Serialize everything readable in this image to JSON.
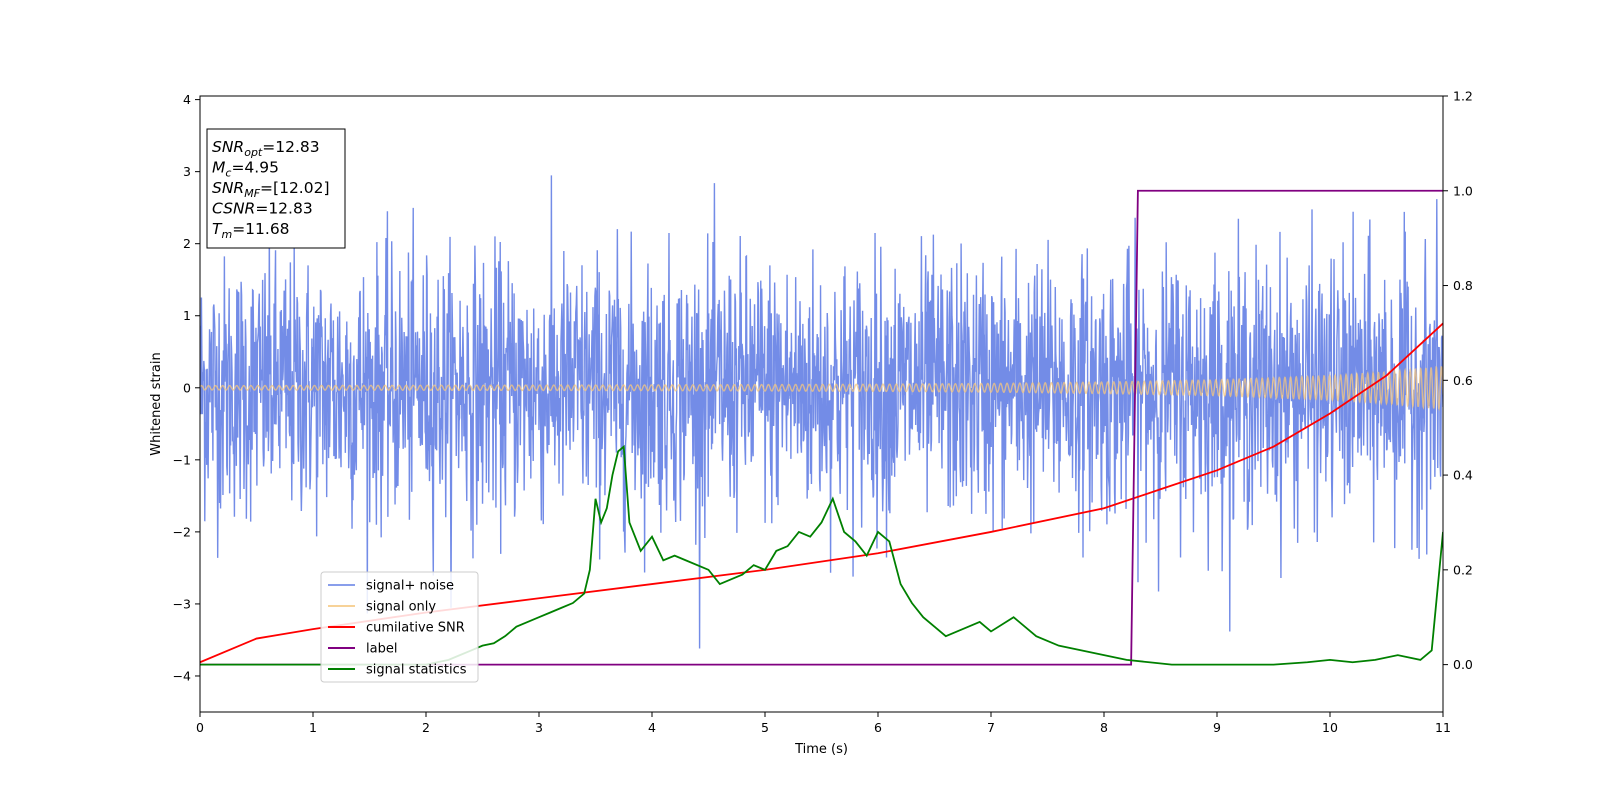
{
  "chart_data": {
    "type": "line",
    "title": "",
    "xlabel": "Time (s)",
    "ylabel": "Whitened strain",
    "xlim": [
      0,
      11
    ],
    "ylim": [
      -4.5,
      4.05
    ],
    "y2lim": [
      -0.1,
      1.2
    ],
    "x_ticks": [
      "0",
      "1",
      "2",
      "3",
      "4",
      "5",
      "6",
      "7",
      "8",
      "9",
      "10",
      "11"
    ],
    "y_ticks": [
      "4",
      "3",
      "2",
      "1",
      "0",
      "−1",
      "−2",
      "−3",
      "−4"
    ],
    "y2_ticks": [
      "1.2",
      "1.0",
      "0.8",
      "0.6",
      "0.4",
      "0.2",
      "0.0"
    ],
    "grid": false,
    "legend_position": "lower-left",
    "annotation": {
      "lines": [
        {
          "main": "SNR",
          "sub": "opt",
          "rest": "=12.83"
        },
        {
          "main": "M",
          "sub": "c",
          "rest": "=4.95"
        },
        {
          "main": "SNR",
          "sub": "MF",
          "rest": "=[12.02]"
        },
        {
          "main": "CSNR",
          "sub": "",
          "rest": "=12.83"
        },
        {
          "main": "T",
          "sub": "m",
          "rest": "=11.68"
        }
      ]
    },
    "series": [
      {
        "name": "signal+ noise",
        "color": "#6b86e6",
        "axis": "left",
        "description": "whitened noisy strain, approx. Gaussian, std ~0.9 with peaks to about ±3.6",
        "noise_std": 0.9
      },
      {
        "name": "signal only",
        "color": "#f5c77e",
        "axis": "left",
        "description": "chirp amplitude envelope growing with time",
        "x": [
          0,
          2,
          4,
          6,
          7,
          8,
          9,
          10,
          10.5,
          11
        ],
        "amplitude": [
          0.03,
          0.035,
          0.04,
          0.05,
          0.06,
          0.08,
          0.11,
          0.17,
          0.22,
          0.3
        ]
      },
      {
        "name": "cumilative SNR",
        "color": "#ff0000",
        "axis": "right",
        "x": [
          0,
          0.5,
          1,
          2,
          3,
          4,
          5,
          6,
          7,
          8,
          8.5,
          9,
          9.5,
          10,
          10.5,
          11
        ],
        "values": [
          0.005,
          0.055,
          0.075,
          0.11,
          0.14,
          0.17,
          0.2,
          0.235,
          0.28,
          0.33,
          0.37,
          0.41,
          0.46,
          0.53,
          0.61,
          0.72
        ]
      },
      {
        "name": "label",
        "color": "#800080",
        "axis": "right",
        "x": [
          0,
          8.24,
          8.3,
          11
        ],
        "values": [
          0.0,
          0.0,
          1.0,
          1.0
        ]
      },
      {
        "name": "signal statistics",
        "color": "#008000",
        "axis": "right",
        "x": [
          0,
          2.0,
          2.2,
          2.3,
          2.4,
          2.5,
          2.6,
          2.7,
          2.8,
          2.9,
          3.0,
          3.1,
          3.2,
          3.3,
          3.4,
          3.45,
          3.5,
          3.55,
          3.6,
          3.65,
          3.7,
          3.75,
          3.8,
          3.9,
          4.0,
          4.1,
          4.2,
          4.3,
          4.5,
          4.6,
          4.7,
          4.8,
          4.9,
          5.0,
          5.1,
          5.2,
          5.3,
          5.4,
          5.5,
          5.6,
          5.7,
          5.8,
          5.9,
          6.0,
          6.1,
          6.2,
          6.3,
          6.4,
          6.5,
          6.6,
          6.7,
          6.8,
          6.9,
          7.0,
          7.2,
          7.4,
          7.6,
          7.8,
          8.0,
          8.2,
          8.4,
          8.6,
          9.0,
          9.5,
          9.8,
          10.0,
          10.2,
          10.4,
          10.6,
          10.8,
          10.9,
          11.0
        ],
        "values": [
          0.0,
          0.0,
          0.01,
          0.02,
          0.03,
          0.04,
          0.045,
          0.06,
          0.08,
          0.09,
          0.1,
          0.11,
          0.12,
          0.13,
          0.15,
          0.2,
          0.35,
          0.3,
          0.33,
          0.4,
          0.45,
          0.46,
          0.3,
          0.24,
          0.27,
          0.22,
          0.23,
          0.22,
          0.2,
          0.17,
          0.18,
          0.19,
          0.21,
          0.2,
          0.24,
          0.25,
          0.28,
          0.27,
          0.3,
          0.35,
          0.28,
          0.26,
          0.23,
          0.28,
          0.26,
          0.17,
          0.13,
          0.1,
          0.08,
          0.06,
          0.07,
          0.08,
          0.09,
          0.07,
          0.1,
          0.06,
          0.04,
          0.03,
          0.02,
          0.01,
          0.005,
          0.0,
          0.0,
          0.0,
          0.005,
          0.01,
          0.005,
          0.01,
          0.02,
          0.01,
          0.03,
          0.28
        ]
      }
    ]
  }
}
